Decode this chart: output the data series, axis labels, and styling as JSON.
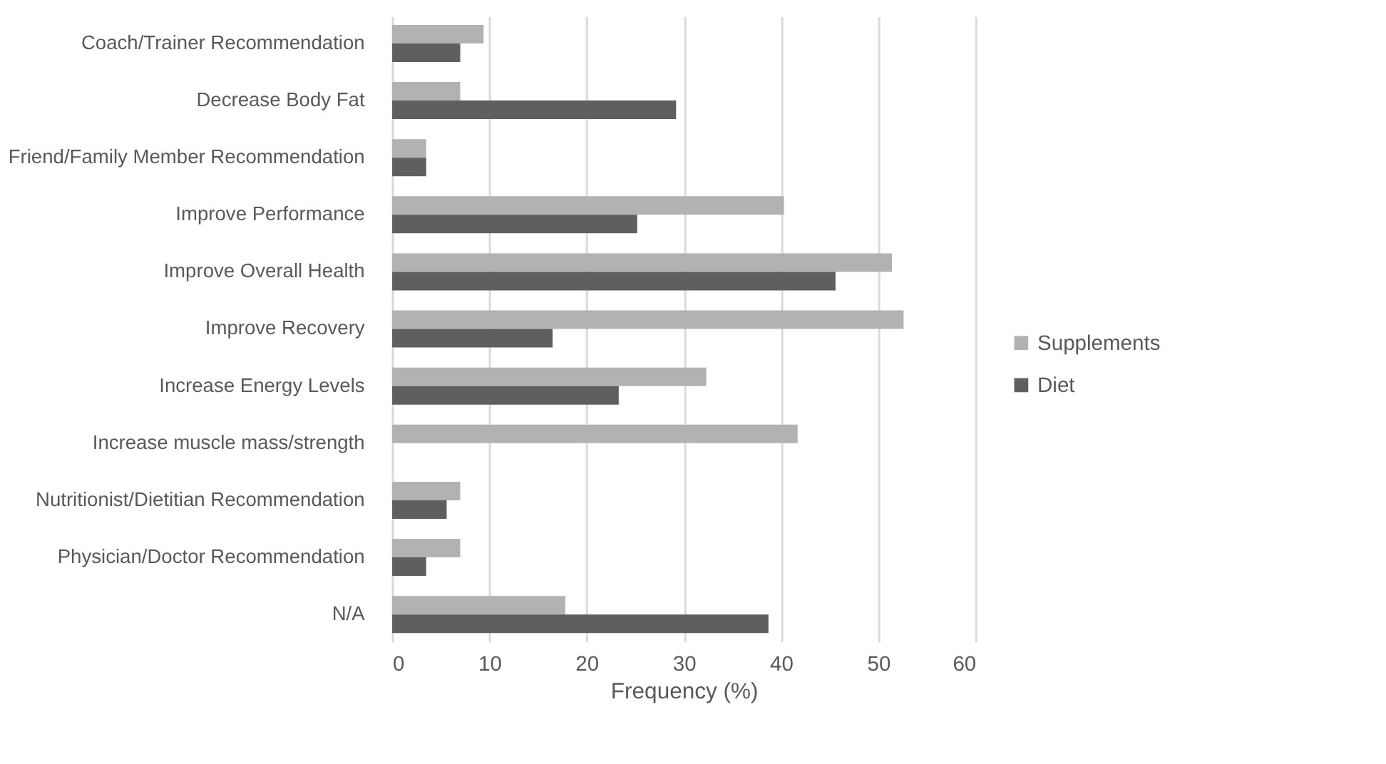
{
  "chart_data": {
    "type": "bar",
    "orientation": "horizontal",
    "xlabel": "Frequency (%)",
    "categories": [
      "Coach/Trainer Recommendation",
      "Decrease Body Fat",
      "Friend/Family Member Recommendation",
      "Improve Performance",
      "Improve Overall Health",
      "Improve Recovery",
      "Increase Energy Levels",
      "Increase muscle mass/strength",
      "Nutritionist/Dietitian Recommendation",
      "Physician/Doctor Recommendation",
      "N/A"
    ],
    "series": [
      {
        "name": "Supplements",
        "color": "#b2b2b2",
        "values": [
          9.4,
          7.0,
          3.5,
          40.3,
          51.4,
          52.6,
          32.3,
          41.7,
          7.0,
          7.0,
          17.8
        ]
      },
      {
        "name": "Diet",
        "color": "#5f5f5f",
        "values": [
          7.0,
          29.2,
          3.5,
          25.2,
          45.6,
          16.5,
          23.3,
          null,
          5.6,
          3.5,
          38.7
        ]
      }
    ],
    "xlim": [
      0,
      60
    ],
    "xticks": [
      0,
      10,
      20,
      30,
      40,
      50,
      60
    ],
    "grid": "x",
    "legend": "right"
  }
}
